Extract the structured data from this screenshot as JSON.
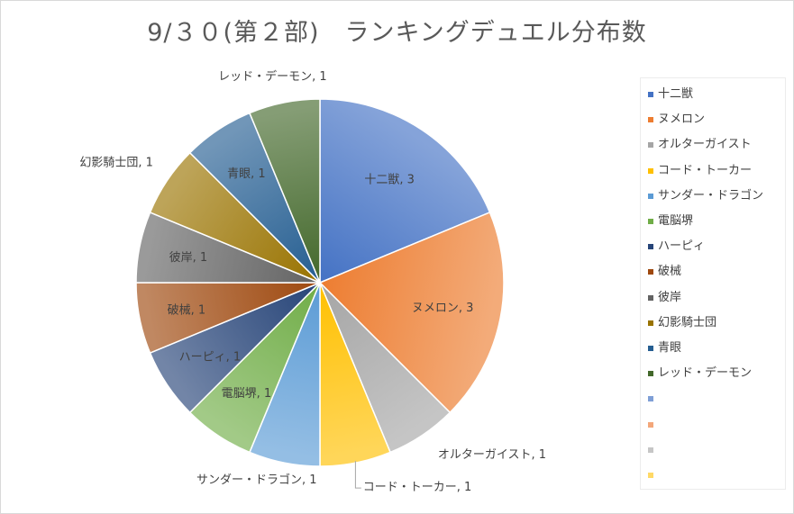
{
  "chart_data": {
    "type": "pie",
    "title": "9/３０(第２部)　ランキングデュエル分布数",
    "categories": [
      "十二獣",
      "ヌメロン",
      "オルターガイスト",
      "コード・トーカー",
      "サンダー・ドラゴン",
      "電脳堺",
      "ハーピィ",
      "破械",
      "彼岸",
      "幻影騎士団",
      "青眼",
      "レッド・デーモン"
    ],
    "values": [
      3,
      3,
      1,
      1,
      1,
      1,
      1,
      1,
      1,
      1,
      1,
      1
    ],
    "data_labels": [
      "十二獣, 3",
      "ヌメロン, 3",
      "オルターガイスト, 1",
      "コード・トーカー, 1",
      "サンダー・ドラゴン, 1",
      "電脳堺, 1",
      "ハーピィ, 1",
      "破械, 1",
      "彼岸, 1",
      "幻影騎士団, 1",
      "青眼, 1",
      "レッド・デーモン, 1"
    ],
    "colors": [
      "#4472c4",
      "#ed7d31",
      "#a5a5a5",
      "#ffc000",
      "#5b9bd5",
      "#70ad47",
      "#264478",
      "#9e480e",
      "#636363",
      "#997300",
      "#255e91",
      "#43682b"
    ],
    "extra_legend_colors": [
      "#7f9fd6",
      "#f3a77a",
      "#c6c6c6",
      "#ffd966"
    ],
    "legend_position": "right"
  }
}
